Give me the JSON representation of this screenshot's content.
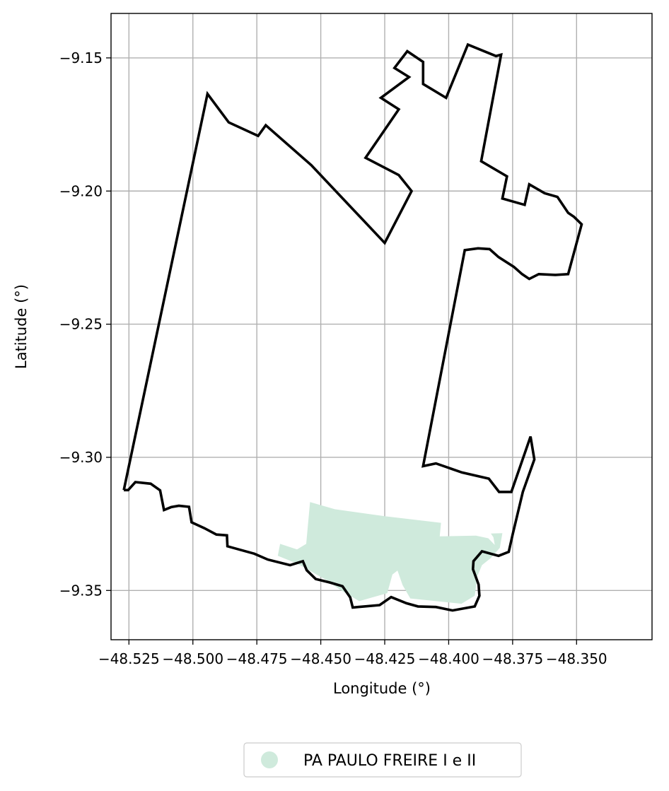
{
  "chart_data": {
    "type": "map",
    "title": "",
    "xlabel": "Longitude (°)",
    "ylabel": "Latitude (°)",
    "xlim": [
      -48.532,
      -48.3205
    ],
    "ylim": [
      -9.3685,
      -9.1333
    ],
    "grid": true,
    "x_ticks": [
      {
        "value": -48.525,
        "label": "−48.525"
      },
      {
        "value": -48.5,
        "label": "−48.500"
      },
      {
        "value": -48.475,
        "label": "−48.475"
      },
      {
        "value": -48.45,
        "label": "−48.450"
      },
      {
        "value": -48.425,
        "label": "−48.425"
      },
      {
        "value": -48.4,
        "label": "−48.400"
      },
      {
        "value": -48.375,
        "label": "−48.375"
      },
      {
        "value": -48.35,
        "label": "−48.350"
      }
    ],
    "y_ticks": [
      {
        "value": -9.15,
        "label": "−9.15"
      },
      {
        "value": -9.2,
        "label": "−9.20"
      },
      {
        "value": -9.25,
        "label": "−9.25"
      },
      {
        "value": -9.3,
        "label": "−9.30"
      },
      {
        "value": -9.35,
        "label": "−9.35"
      }
    ],
    "legend": {
      "placement": "bottom-center",
      "entries": [
        {
          "label": "PA PAULO FREIRE I e II",
          "color": "#cfeadc"
        }
      ]
    },
    "series": [
      {
        "name": "PA PAULO FREIRE I e II",
        "kind": "filled-polygon",
        "color": "#cfeadc",
        "points": [
          [
            -48.4659,
            -9.3325
          ],
          [
            -48.4593,
            -9.3346
          ],
          [
            -48.4557,
            -9.3325
          ],
          [
            -48.4542,
            -9.3168
          ],
          [
            -48.4445,
            -9.3195
          ],
          [
            -48.425,
            -9.3221
          ],
          [
            -48.403,
            -9.3246
          ],
          [
            -48.4035,
            -9.3297
          ],
          [
            -48.3893,
            -9.3294
          ],
          [
            -48.3845,
            -9.3304
          ],
          [
            -48.382,
            -9.3329
          ],
          [
            -48.3825,
            -9.33
          ],
          [
            -48.3835,
            -9.3286
          ],
          [
            -48.379,
            -9.3285
          ],
          [
            -48.38,
            -9.334
          ],
          [
            -48.3835,
            -9.3378
          ],
          [
            -48.387,
            -9.3405
          ],
          [
            -48.3888,
            -9.3446
          ],
          [
            -48.3898,
            -9.352
          ],
          [
            -48.395,
            -9.355
          ],
          [
            -48.415,
            -9.353
          ],
          [
            -48.418,
            -9.348
          ],
          [
            -48.42,
            -9.3425
          ],
          [
            -48.422,
            -9.344
          ],
          [
            -48.424,
            -9.351
          ],
          [
            -48.435,
            -9.354
          ],
          [
            -48.442,
            -9.35
          ],
          [
            -48.448,
            -9.346
          ],
          [
            -48.459,
            -9.34
          ],
          [
            -48.4668,
            -9.337
          ]
        ]
      },
      {
        "name": "",
        "kind": "outline",
        "color": "#000000",
        "points": [
          [
            -48.527,
            -9.3123
          ],
          [
            -48.5253,
            -9.3123
          ],
          [
            -48.5225,
            -9.3093
          ],
          [
            -48.5165,
            -9.3099
          ],
          [
            -48.5128,
            -9.3124
          ],
          [
            -48.5113,
            -9.3198
          ],
          [
            -48.5085,
            -9.3187
          ],
          [
            -48.5055,
            -9.3182
          ],
          [
            -48.5015,
            -9.3186
          ],
          [
            -48.5005,
            -9.3244
          ],
          [
            -48.4955,
            -9.3266
          ],
          [
            -48.4908,
            -9.329
          ],
          [
            -48.4867,
            -9.3293
          ],
          [
            -48.4865,
            -9.3334
          ],
          [
            -48.476,
            -9.3362
          ],
          [
            -48.4707,
            -9.3384
          ],
          [
            -48.462,
            -9.3405
          ],
          [
            -48.457,
            -9.339
          ],
          [
            -48.4555,
            -9.3424
          ],
          [
            -48.452,
            -9.3457
          ],
          [
            -48.4465,
            -9.347
          ],
          [
            -48.4415,
            -9.3484
          ],
          [
            -48.4385,
            -9.3526
          ],
          [
            -48.4375,
            -9.3564
          ],
          [
            -48.427,
            -9.3555
          ],
          [
            -48.4225,
            -9.3525
          ],
          [
            -48.4165,
            -9.3548
          ],
          [
            -48.412,
            -9.356
          ],
          [
            -48.405,
            -9.3562
          ],
          [
            -48.3985,
            -9.3575
          ],
          [
            -48.3898,
            -9.356
          ],
          [
            -48.388,
            -9.352
          ],
          [
            -48.3883,
            -9.3478
          ],
          [
            -48.3905,
            -9.342
          ],
          [
            -48.3903,
            -9.339
          ],
          [
            -48.387,
            -9.3353
          ],
          [
            -48.3805,
            -9.337
          ],
          [
            -48.3765,
            -9.3355
          ],
          [
            -48.375,
            -9.329
          ],
          [
            -48.371,
            -9.313
          ],
          [
            -48.3665,
            -9.3008
          ],
          [
            -48.368,
            -9.2922
          ],
          [
            -48.3755,
            -9.313
          ],
          [
            -48.3803,
            -9.313
          ],
          [
            -48.3843,
            -9.308
          ],
          [
            -48.3948,
            -9.3057
          ],
          [
            -48.405,
            -9.3023
          ],
          [
            -48.41,
            -9.3033
          ],
          [
            -48.3937,
            -9.2222
          ],
          [
            -48.3885,
            -9.2215
          ],
          [
            -48.384,
            -9.2218
          ],
          [
            -48.3805,
            -9.2248
          ],
          [
            -48.3745,
            -9.2285
          ],
          [
            -48.3713,
            -9.2312
          ],
          [
            -48.3685,
            -9.233
          ],
          [
            -48.3648,
            -9.2312
          ],
          [
            -48.3583,
            -9.2315
          ],
          [
            -48.3533,
            -9.2312
          ],
          [
            -48.348,
            -9.2125
          ],
          [
            -48.351,
            -9.2097
          ],
          [
            -48.3533,
            -9.2082
          ],
          [
            -48.3575,
            -9.2022
          ],
          [
            -48.3625,
            -9.2008
          ],
          [
            -48.3685,
            -9.1975
          ],
          [
            -48.3703,
            -9.2052
          ],
          [
            -48.379,
            -9.2028
          ],
          [
            -48.3772,
            -9.1945
          ],
          [
            -48.3873,
            -9.1888
          ],
          [
            -48.3795,
            -9.1488
          ],
          [
            -48.3815,
            -9.1493
          ],
          [
            -48.3925,
            -9.145
          ],
          [
            -48.401,
            -9.165
          ],
          [
            -48.41,
            -9.1598
          ],
          [
            -48.41,
            -9.1515
          ],
          [
            -48.4162,
            -9.1475
          ],
          [
            -48.4212,
            -9.1538
          ],
          [
            -48.4155,
            -9.1572
          ],
          [
            -48.4265,
            -9.165
          ],
          [
            -48.4195,
            -9.1693
          ],
          [
            -48.4325,
            -9.1875
          ],
          [
            -48.4195,
            -9.194
          ],
          [
            -48.4145,
            -9.2
          ],
          [
            -48.425,
            -9.2195
          ],
          [
            -48.4537,
            -9.1903
          ],
          [
            -48.4715,
            -9.1753
          ],
          [
            -48.4745,
            -9.1793
          ],
          [
            -48.486,
            -9.1742
          ],
          [
            -48.4943,
            -9.1635
          ],
          [
            -48.527,
            -9.3123
          ]
        ]
      }
    ]
  }
}
